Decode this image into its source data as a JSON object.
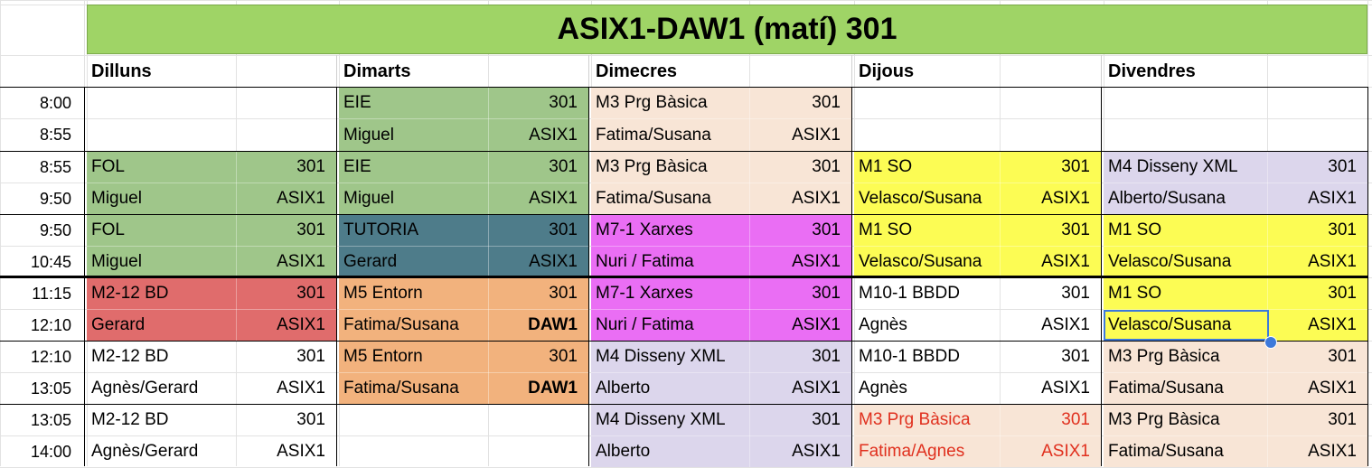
{
  "sheet": {
    "title": "ASIX1-DAW1 (matí) 301",
    "days": [
      "Dilluns",
      "Dimarts",
      "Dimecres",
      "Dijous",
      "Divendres"
    ],
    "times": [
      "8:00",
      "8:55",
      "8:55",
      "9:50",
      "9:50",
      "10:45",
      "11:15",
      "12:10",
      "12:10",
      "13:05",
      "13:05",
      "14:00"
    ],
    "colors": {
      "title_bg": "#9fd466",
      "green": "#9fc68a",
      "teal": "#4e7c8a",
      "peach": "#f8e5d6",
      "magenta": "#ea6ef4",
      "yellow": "#fcfc54",
      "lavender": "#dcd6ec",
      "red": "#e06c6c",
      "orange": "#f2b27d",
      "red_text": "#e0301e",
      "selection": "#3d79db"
    },
    "rows": [
      [
        {
          "top": "",
          "room": "",
          "bottom": "",
          "group": ""
        },
        {
          "top": "EIE",
          "room": "301",
          "bottom": "Miguel",
          "group": "ASIX1",
          "bg": "green"
        },
        {
          "top": "M3 Prg Bàsica",
          "room": "301",
          "bottom": "Fatima/Susana",
          "group": "ASIX1",
          "bg": "peach"
        },
        {
          "top": "",
          "room": "",
          "bottom": "",
          "group": ""
        },
        {
          "top": "",
          "room": "",
          "bottom": "",
          "group": ""
        }
      ],
      [
        {
          "top": "FOL",
          "room": "301",
          "bottom": "Miguel",
          "group": "ASIX1",
          "bg": "green"
        },
        {
          "top": "EIE",
          "room": "301",
          "bottom": "Miguel",
          "group": "ASIX1",
          "bg": "green"
        },
        {
          "top": "M3 Prg Bàsica",
          "room": "301",
          "bottom": "Fatima/Susana",
          "group": "ASIX1",
          "bg": "peach"
        },
        {
          "top": "M1 SO",
          "room": "301",
          "bottom": "Velasco/Susana",
          "group": "ASIX1",
          "bg": "yellow"
        },
        {
          "top": "M4 Disseny XML",
          "room": "301",
          "bottom": "Alberto/Susana",
          "group": "ASIX1",
          "bg": "lavender"
        }
      ],
      [
        {
          "top": "FOL",
          "room": "301",
          "bottom": "Miguel",
          "group": "ASIX1",
          "bg": "green"
        },
        {
          "top": "TUTORIA",
          "room": "301",
          "bottom": "Gerard",
          "group": "ASIX1",
          "bg": "teal"
        },
        {
          "top": "M7-1 Xarxes",
          "room": "301",
          "bottom": "Nuri / Fatima",
          "group": "ASIX1",
          "bg": "magenta"
        },
        {
          "top": "M1 SO",
          "room": "301",
          "bottom": "Velasco/Susana",
          "group": "ASIX1",
          "bg": "yellow"
        },
        {
          "top": "M1 SO",
          "room": "301",
          "bottom": "Velasco/Susana",
          "group": "ASIX1",
          "bg": "yellow"
        }
      ],
      [
        {
          "top": "M2-12 BD",
          "room": "301",
          "bottom": "Gerard",
          "group": "ASIX1",
          "bg": "red"
        },
        {
          "top": "M5 Entorn",
          "room": "301",
          "bottom": "Fatima/Susana",
          "group": "DAW1",
          "bg": "orange",
          "group_bold": true
        },
        {
          "top": "M7-1 Xarxes",
          "room": "301",
          "bottom": "Nuri / Fatima",
          "group": "ASIX1",
          "bg": "magenta"
        },
        {
          "top": "M10-1 BBDD",
          "room": "301",
          "bottom": "Agnès",
          "group": "ASIX1"
        },
        {
          "top": "M1 SO",
          "room": "301",
          "bottom": "Velasco/Susana",
          "group": "ASIX1",
          "bg": "yellow"
        }
      ],
      [
        {
          "top": "M2-12 BD",
          "room": "301",
          "bottom": "Agnès/Gerard",
          "group": "ASIX1"
        },
        {
          "top": "M5 Entorn",
          "room": "301",
          "bottom": "Fatima/Susana",
          "group": "DAW1",
          "bg": "orange",
          "group_bold": true
        },
        {
          "top": "M4 Disseny XML",
          "room": "301",
          "bottom": "Alberto",
          "group": "ASIX1",
          "bg": "lavender"
        },
        {
          "top": "M10-1 BBDD",
          "room": "301",
          "bottom": "Agnès",
          "group": "ASIX1"
        },
        {
          "top": "M3 Prg Bàsica",
          "room": "301",
          "bottom": "Fatima/Susana",
          "group": "ASIX1",
          "bg": "peach"
        }
      ],
      [
        {
          "top": "M2-12 BD",
          "room": "301",
          "bottom": "Agnès/Gerard",
          "group": "ASIX1"
        },
        {
          "top": "",
          "room": "",
          "bottom": "",
          "group": ""
        },
        {
          "top": "M4 Disseny XML",
          "room": "301",
          "bottom": "Alberto",
          "group": "ASIX1",
          "bg": "lavender"
        },
        {
          "top": "M3 Prg Bàsica",
          "room": "301",
          "bottom": "Fatima/Agnes",
          "group": "ASIX1",
          "bg": "peach",
          "text_color": "red_text"
        },
        {
          "top": "M3 Prg Bàsica",
          "room": "301",
          "bottom": "Fatima/Susana",
          "group": "ASIX1",
          "bg": "peach"
        }
      ]
    ]
  }
}
